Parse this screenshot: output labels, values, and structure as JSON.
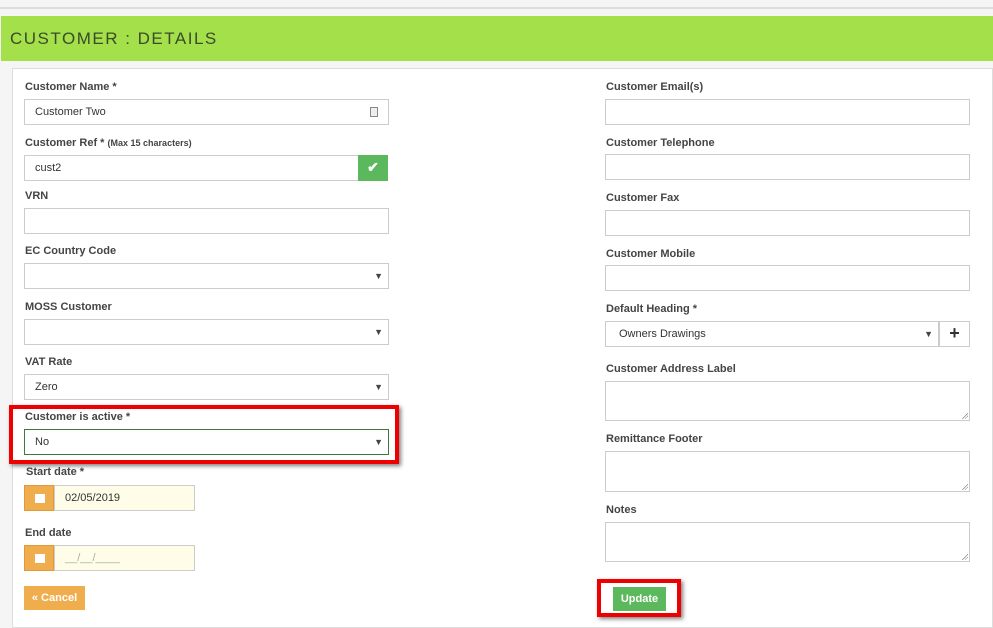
{
  "header": {
    "title": "CUSTOMER : DETAILS"
  },
  "left": {
    "name_label": "Customer Name *",
    "name_value": "Customer Two",
    "ref_label": "Customer Ref *",
    "ref_hint": "(Max 15 characters)",
    "ref_value": "cust2",
    "vrn_label": "VRN",
    "vrn_value": "",
    "ec_label": "EC Country Code",
    "ec_value": "",
    "moss_label": "MOSS Customer",
    "moss_value": "",
    "vat_label": "VAT Rate",
    "vat_value": "Zero",
    "active_label": "Customer is active *",
    "active_value": "No",
    "start_label": "Start date *",
    "start_value": "02/05/2019",
    "end_label": "End date",
    "end_placeholder": "__/__/____",
    "cancel": "« Cancel"
  },
  "right": {
    "email_label": "Customer Email(s)",
    "tel_label": "Customer Telephone",
    "fax_label": "Customer Fax",
    "mobile_label": "Customer Mobile",
    "heading_label": "Default Heading *",
    "heading_value": "Owners Drawings",
    "add": "+",
    "address_label": "Customer Address Label",
    "remit_label": "Remittance Footer",
    "notes_label": "Notes",
    "update": "Update"
  },
  "colors": {
    "header": "#a3e04a",
    "success": "#5cb85c",
    "warning": "#f0ad4e",
    "highlight": "#ee0000"
  }
}
